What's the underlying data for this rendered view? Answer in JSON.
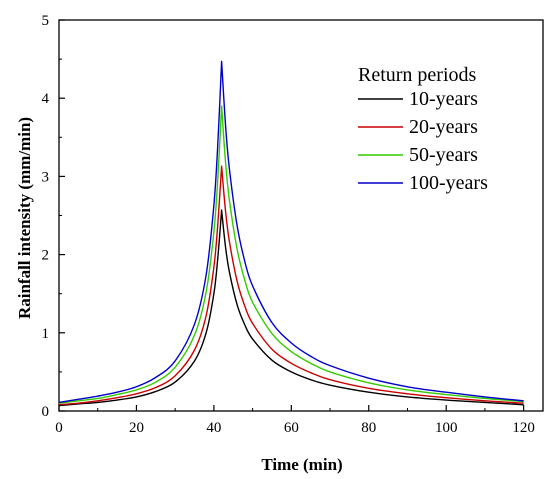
{
  "chart_data": {
    "type": "line",
    "xlabel": "Time (min)",
    "ylabel": "Rainfall intensity (mm/min)",
    "xlim": [
      0,
      125
    ],
    "ylim": [
      0,
      5
    ],
    "x_ticks": [
      "0",
      "20",
      "40",
      "60",
      "80",
      "100",
      "120"
    ],
    "y_ticks": [
      "0",
      "1",
      "2",
      "3",
      "4",
      "5"
    ],
    "grid": false,
    "legend": {
      "title": "Return periods",
      "placement": "top-right"
    },
    "peak_time": 42,
    "x": [
      0,
      5,
      10,
      15,
      20,
      25,
      30,
      35,
      38,
      40,
      41,
      42,
      43,
      44,
      46,
      48,
      50,
      55,
      60,
      65,
      70,
      80,
      90,
      100,
      110,
      120
    ],
    "series": [
      {
        "name": "10-years",
        "color": "#000000",
        "values": [
          0.07,
          0.09,
          0.11,
          0.14,
          0.18,
          0.25,
          0.37,
          0.64,
          1.0,
          1.5,
          1.95,
          2.57,
          2.1,
          1.78,
          1.36,
          1.1,
          0.92,
          0.65,
          0.5,
          0.4,
          0.33,
          0.24,
          0.18,
          0.14,
          0.11,
          0.08
        ]
      },
      {
        "name": "20-years",
        "color": "#cc0000",
        "values": [
          0.08,
          0.1,
          0.13,
          0.17,
          0.22,
          0.3,
          0.45,
          0.78,
          1.22,
          1.84,
          2.38,
          3.13,
          2.56,
          2.17,
          1.66,
          1.34,
          1.12,
          0.79,
          0.61,
          0.49,
          0.4,
          0.29,
          0.22,
          0.17,
          0.13,
          0.1
        ]
      },
      {
        "name": "50-years",
        "color": "#33cc00",
        "values": [
          0.1,
          0.13,
          0.16,
          0.21,
          0.27,
          0.37,
          0.56,
          0.97,
          1.52,
          2.29,
          2.96,
          3.9,
          3.19,
          2.7,
          2.07,
          1.67,
          1.39,
          0.99,
          0.76,
          0.61,
          0.5,
          0.36,
          0.27,
          0.21,
          0.16,
          0.12
        ]
      },
      {
        "name": "100-years",
        "color": "#0000cc",
        "values": [
          0.11,
          0.15,
          0.19,
          0.24,
          0.31,
          0.43,
          0.64,
          1.11,
          1.74,
          2.63,
          3.4,
          4.47,
          3.66,
          3.1,
          2.37,
          1.91,
          1.6,
          1.13,
          0.87,
          0.7,
          0.58,
          0.42,
          0.31,
          0.24,
          0.18,
          0.13
        ]
      }
    ]
  }
}
